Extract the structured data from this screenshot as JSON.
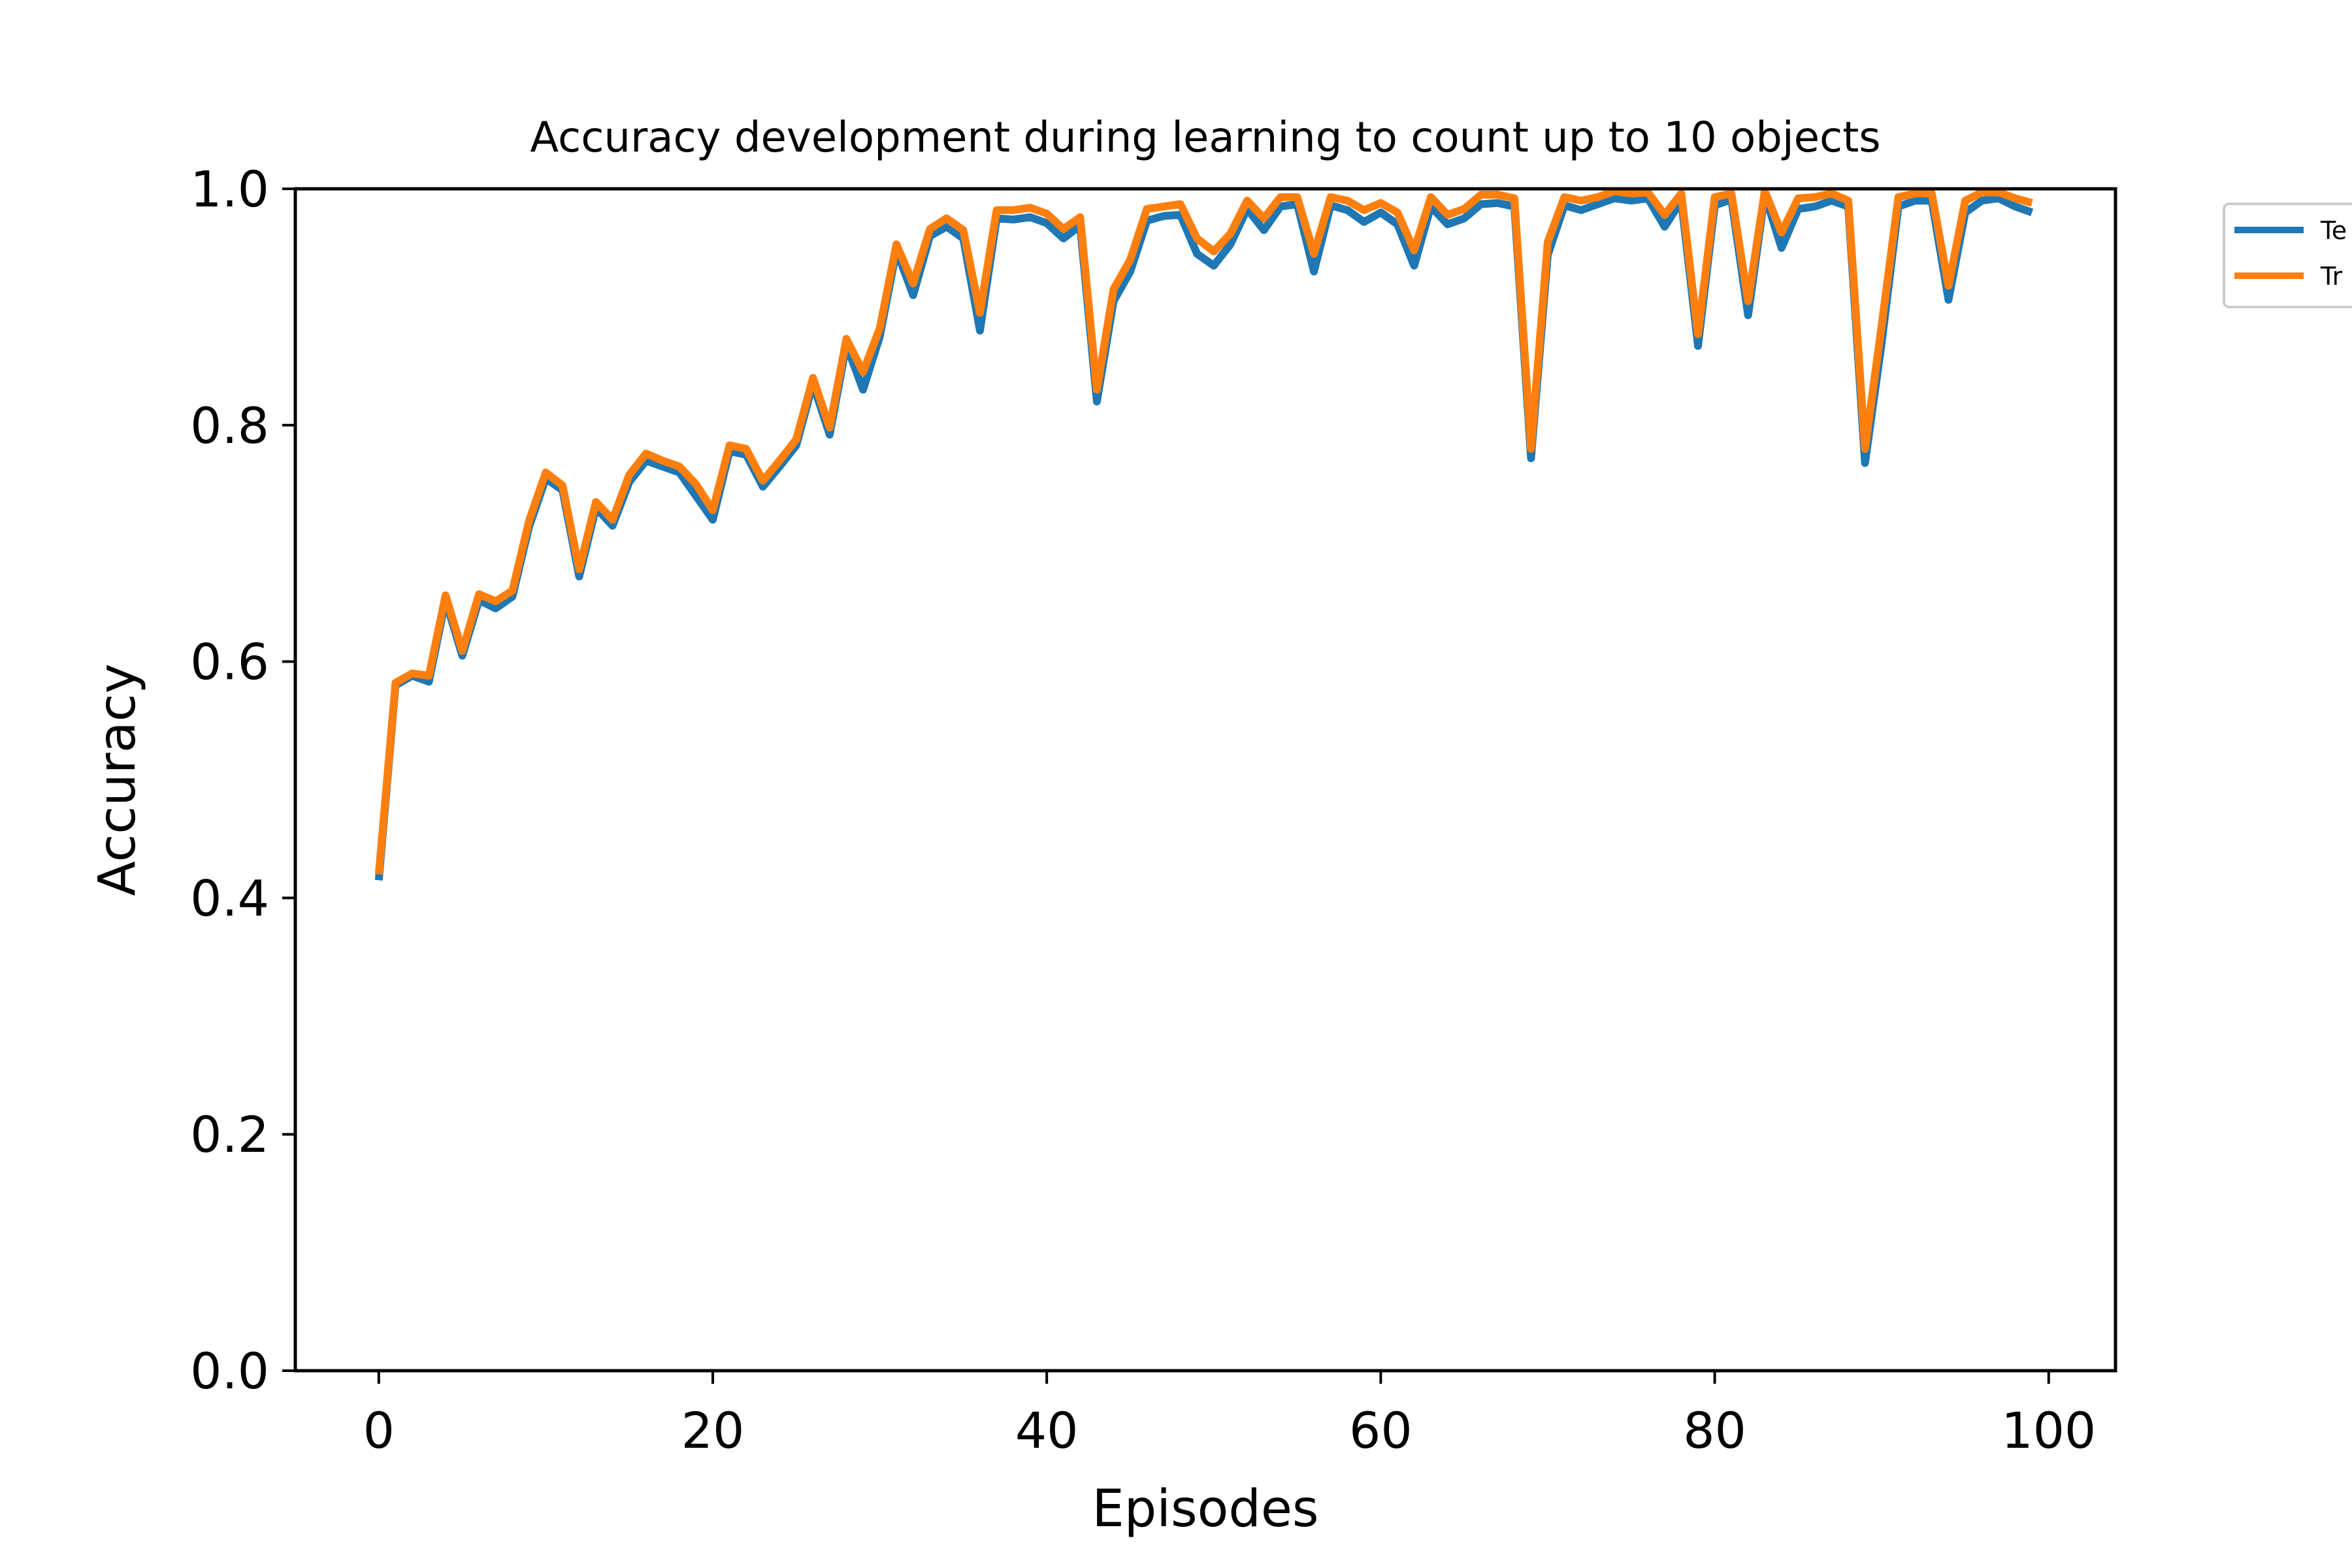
{
  "chart_data": {
    "type": "line",
    "title": "Accuracy development during learning to count up to 10 objects",
    "xlabel": "Episodes",
    "ylabel": "Accuracy",
    "xlim": [
      -5,
      104
    ],
    "ylim": [
      0.0,
      1.0
    ],
    "xticks": [
      0,
      20,
      40,
      60,
      80,
      100
    ],
    "yticks": [
      0.0,
      0.2,
      0.4,
      0.6,
      0.8,
      1.0
    ],
    "xtick_labels": [
      "0",
      "20",
      "40",
      "60",
      "80",
      "100"
    ],
    "ytick_labels": [
      "0.0",
      "0.2",
      "0.4",
      "0.6",
      "0.8",
      "1.0"
    ],
    "grid": false,
    "legend_position": "outside top-right (clipped)",
    "legend_labels": [
      "Te",
      "Tr"
    ],
    "x": [
      0,
      1,
      2,
      3,
      4,
      5,
      6,
      7,
      8,
      9,
      10,
      11,
      12,
      13,
      14,
      15,
      16,
      17,
      18,
      19,
      20,
      21,
      22,
      23,
      24,
      25,
      26,
      27,
      28,
      29,
      30,
      31,
      32,
      33,
      34,
      35,
      36,
      37,
      38,
      39,
      40,
      41,
      42,
      43,
      44,
      45,
      46,
      47,
      48,
      49,
      50,
      51,
      52,
      53,
      54,
      55,
      56,
      57,
      58,
      59,
      60,
      61,
      62,
      63,
      64,
      65,
      66,
      67,
      68,
      69,
      70,
      71,
      72,
      73,
      74,
      75,
      76,
      77,
      78,
      79,
      80,
      81,
      82,
      83,
      84,
      85,
      86,
      87,
      88,
      89,
      90,
      91,
      92,
      93,
      94,
      95,
      96,
      97,
      98,
      99
    ],
    "series": [
      {
        "color": "#1f77b4",
        "values": [
          0.415,
          0.58,
          0.588,
          0.583,
          0.652,
          0.605,
          0.652,
          0.645,
          0.655,
          0.714,
          0.755,
          0.745,
          0.672,
          0.73,
          0.715,
          0.752,
          0.77,
          0.765,
          0.76,
          0.74,
          0.72,
          0.778,
          0.775,
          0.748,
          0.765,
          0.783,
          0.835,
          0.792,
          0.868,
          0.83,
          0.875,
          0.948,
          0.91,
          0.96,
          0.968,
          0.958,
          0.88,
          0.975,
          0.974,
          0.976,
          0.971,
          0.958,
          0.969,
          0.82,
          0.905,
          0.93,
          0.973,
          0.977,
          0.978,
          0.945,
          0.935,
          0.953,
          0.983,
          0.965,
          0.985,
          0.987,
          0.93,
          0.986,
          0.982,
          0.972,
          0.98,
          0.97,
          0.935,
          0.985,
          0.97,
          0.975,
          0.987,
          0.988,
          0.985,
          0.772,
          0.944,
          0.986,
          0.982,
          0.987,
          0.992,
          0.99,
          0.992,
          0.968,
          0.99,
          0.867,
          0.986,
          0.991,
          0.893,
          0.995,
          0.95,
          0.983,
          0.985,
          0.99,
          0.985,
          0.768,
          0.87,
          0.985,
          0.99,
          0.99,
          0.906,
          0.98,
          0.99,
          0.992,
          0.985,
          0.98
        ]
      },
      {
        "color": "#ff7f0e",
        "values": [
          0.42,
          0.582,
          0.59,
          0.588,
          0.656,
          0.609,
          0.657,
          0.651,
          0.66,
          0.719,
          0.76,
          0.749,
          0.678,
          0.735,
          0.72,
          0.758,
          0.776,
          0.77,
          0.765,
          0.75,
          0.728,
          0.783,
          0.78,
          0.753,
          0.77,
          0.788,
          0.84,
          0.798,
          0.873,
          0.845,
          0.882,
          0.953,
          0.92,
          0.966,
          0.975,
          0.965,
          0.895,
          0.982,
          0.982,
          0.984,
          0.979,
          0.966,
          0.976,
          0.83,
          0.915,
          0.94,
          0.983,
          0.985,
          0.987,
          0.958,
          0.947,
          0.962,
          0.99,
          0.975,
          0.993,
          0.993,
          0.945,
          0.993,
          0.99,
          0.982,
          0.988,
          0.98,
          0.948,
          0.993,
          0.978,
          0.983,
          0.995,
          0.995,
          0.992,
          0.78,
          0.955,
          0.993,
          0.99,
          0.993,
          0.998,
          0.996,
          0.997,
          0.978,
          0.996,
          0.877,
          0.993,
          0.996,
          0.905,
          0.998,
          0.963,
          0.992,
          0.993,
          0.996,
          0.99,
          0.78,
          0.885,
          0.993,
          0.996,
          0.996,
          0.918,
          0.99,
          0.997,
          0.997,
          0.992,
          0.988
        ]
      }
    ]
  }
}
